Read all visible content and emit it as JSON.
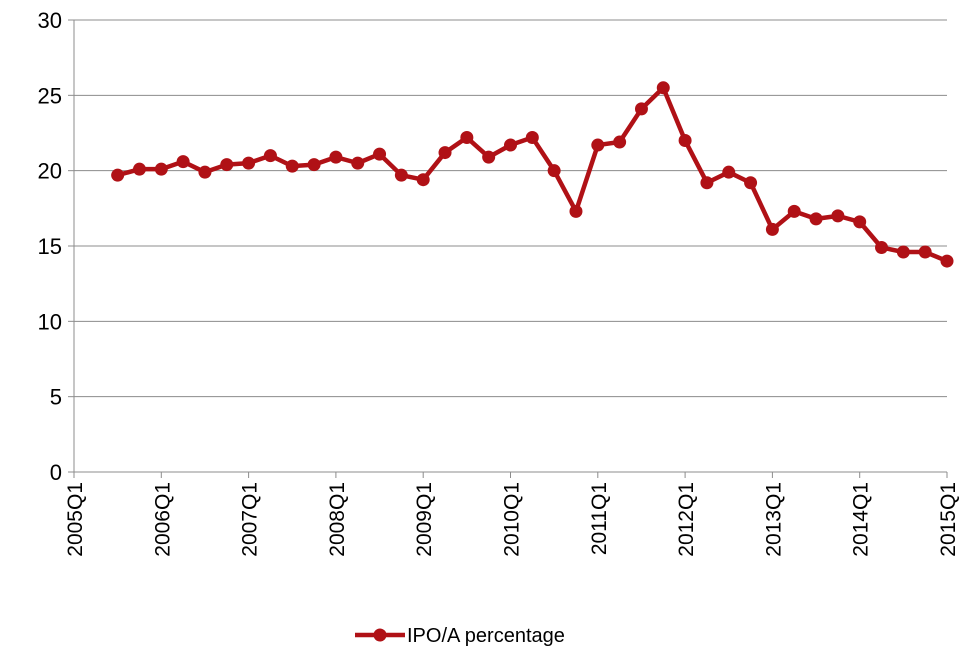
{
  "chart_data": {
    "type": "line",
    "categories": [
      "2005Q1",
      null,
      null,
      null,
      "2006Q1",
      null,
      null,
      null,
      "2007Q1",
      null,
      null,
      null,
      "2008Q1",
      null,
      null,
      null,
      "2009Q1",
      null,
      null,
      null,
      "2010Q1",
      null,
      null,
      null,
      "2011Q1",
      null,
      null,
      null,
      "2012Q1",
      null,
      null,
      null,
      "2013Q1",
      null,
      null,
      null,
      "2014Q1",
      null,
      null,
      null,
      "2015Q1"
    ],
    "series": [
      {
        "name": "IPO/A percentage",
        "color": "#b01116",
        "values": [
          null,
          null,
          19.7,
          20.1,
          20.1,
          20.6,
          19.9,
          20.4,
          20.5,
          21.0,
          20.3,
          20.4,
          20.9,
          20.5,
          21.1,
          19.7,
          19.4,
          21.2,
          22.2,
          20.9,
          21.7,
          22.2,
          20.0,
          17.3,
          21.7,
          21.9,
          24.1,
          25.5,
          22.0,
          19.2,
          19.9,
          19.2,
          16.1,
          17.3,
          16.8,
          17.0,
          16.6,
          14.9,
          14.6,
          14.6,
          14.0
        ]
      }
    ],
    "ylim": [
      0,
      30
    ],
    "yticks": [
      0,
      5,
      10,
      15,
      20,
      25,
      30
    ],
    "grid": true,
    "legend": "bottom"
  }
}
